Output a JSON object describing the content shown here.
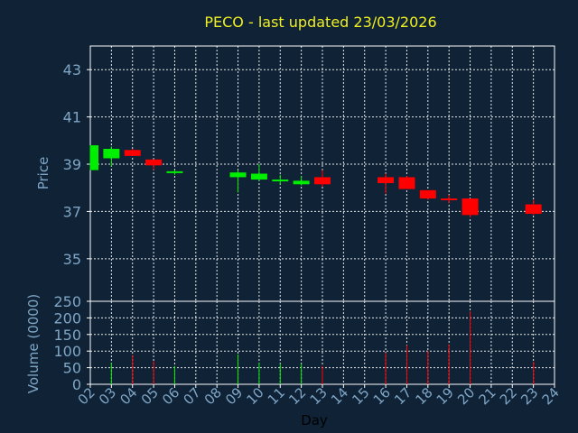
{
  "chart_data": {
    "type": "candlestick",
    "title": "PECO - last updated 23/03/2026",
    "title_color": "#f0f020",
    "background": "#0f2236",
    "up_color": "#00ee00",
    "down_color": "#ff0000",
    "text_color": "#7fa6c6",
    "grid": true,
    "xlabel": "Day",
    "x_ticks": [
      "02",
      "03",
      "04",
      "05",
      "06",
      "07",
      "08",
      "09",
      "10",
      "11",
      "12",
      "13",
      "14",
      "15",
      "16",
      "17",
      "18",
      "19",
      "20",
      "21",
      "22",
      "23",
      "24"
    ],
    "price_panel": {
      "ylabel": "Price",
      "ylim": [
        33.2,
        44
      ],
      "yticks": [
        "35",
        "37",
        "39",
        "41",
        "43"
      ],
      "candles": [
        {
          "day": "02",
          "open": 38.75,
          "high": 39.8,
          "low": 38.75,
          "close": 39.8
        },
        {
          "day": "03",
          "open": 39.25,
          "high": 39.75,
          "low": 38.9,
          "close": 39.65
        },
        {
          "day": "04",
          "open": 39.6,
          "high": 39.65,
          "low": 39.35,
          "close": 39.35
        },
        {
          "day": "05",
          "open": 39.2,
          "high": 39.2,
          "low": 38.75,
          "close": 38.95
        },
        {
          "day": "06",
          "open": 38.65,
          "high": 38.75,
          "low": 38.55,
          "close": 38.7
        },
        {
          "day": "09",
          "open": 38.45,
          "high": 38.75,
          "low": 37.8,
          "close": 38.65
        },
        {
          "day": "10",
          "open": 38.35,
          "high": 39.0,
          "low": 38.3,
          "close": 38.6
        },
        {
          "day": "11",
          "open": 38.3,
          "high": 38.55,
          "low": 38.15,
          "close": 38.35
        },
        {
          "day": "12",
          "open": 38.15,
          "high": 38.5,
          "low": 38.1,
          "close": 38.3
        },
        {
          "day": "13",
          "open": 38.45,
          "high": 38.75,
          "low": 38.05,
          "close": 38.15
        },
        {
          "day": "16",
          "open": 38.45,
          "high": 38.6,
          "low": 37.75,
          "close": 38.2
        },
        {
          "day": "17",
          "open": 38.45,
          "high": 38.5,
          "low": 37.95,
          "close": 37.95
        },
        {
          "day": "18",
          "open": 37.9,
          "high": 37.9,
          "low": 37.5,
          "close": 37.55
        },
        {
          "day": "19",
          "open": 37.55,
          "high": 37.7,
          "low": 37.35,
          "close": 37.5
        },
        {
          "day": "20",
          "open": 37.55,
          "high": 37.55,
          "low": 36.75,
          "close": 36.85
        },
        {
          "day": "23",
          "open": 37.3,
          "high": 37.5,
          "low": 36.85,
          "close": 36.9
        }
      ]
    },
    "volume_panel": {
      "ylabel": "Volume (0000)",
      "ylim": [
        0,
        250
      ],
      "yticks": [
        "0",
        "50",
        "100",
        "150",
        "200",
        "250"
      ],
      "bars": [
        {
          "day": "03",
          "value": 65,
          "color": "up"
        },
        {
          "day": "04",
          "value": 88,
          "color": "down"
        },
        {
          "day": "05",
          "value": 70,
          "color": "down"
        },
        {
          "day": "06",
          "value": 55,
          "color": "up"
        },
        {
          "day": "09",
          "value": 90,
          "color": "up"
        },
        {
          "day": "10",
          "value": 65,
          "color": "up"
        },
        {
          "day": "11",
          "value": 62,
          "color": "up"
        },
        {
          "day": "12",
          "value": 62,
          "color": "up"
        },
        {
          "day": "13",
          "value": 55,
          "color": "down"
        },
        {
          "day": "16",
          "value": 95,
          "color": "down"
        },
        {
          "day": "17",
          "value": 118,
          "color": "down"
        },
        {
          "day": "18",
          "value": 100,
          "color": "down"
        },
        {
          "day": "19",
          "value": 120,
          "color": "down"
        },
        {
          "day": "20",
          "value": 220,
          "color": "down"
        },
        {
          "day": "23",
          "value": 68,
          "color": "down"
        }
      ]
    }
  }
}
